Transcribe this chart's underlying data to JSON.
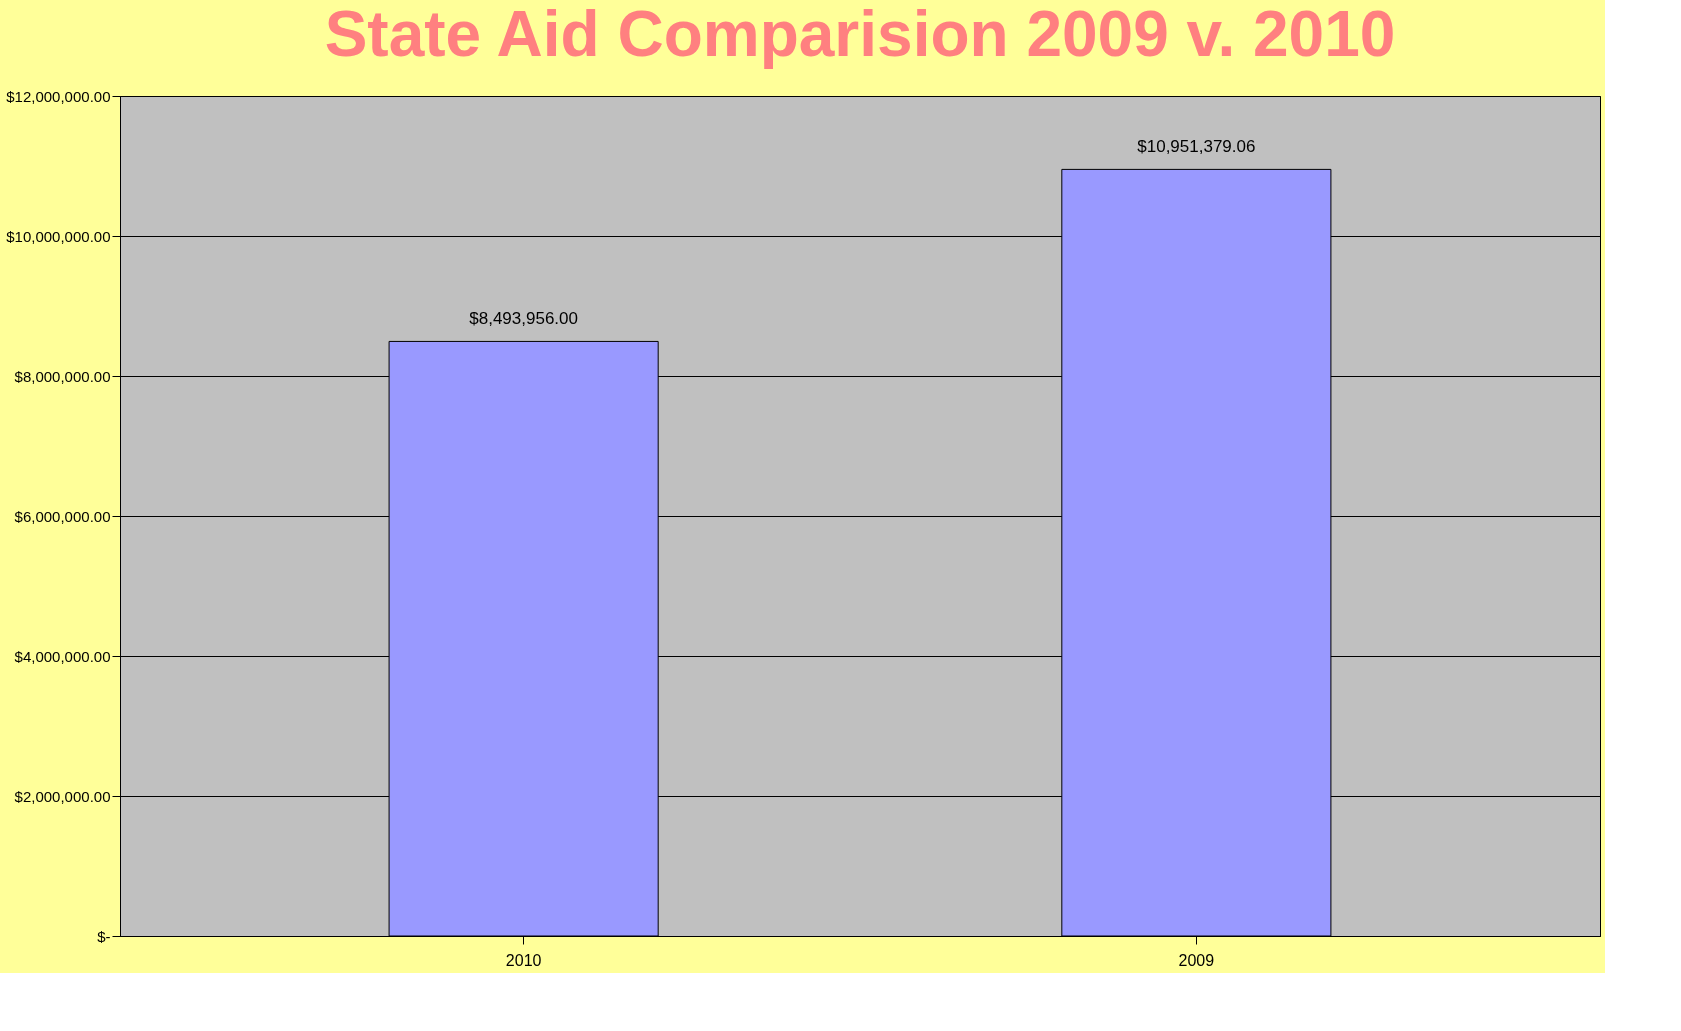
{
  "chart_data": {
    "type": "bar",
    "title": "State Aid Comparision 2009 v. 2010",
    "categories": [
      "2010",
      "2009"
    ],
    "series": [
      {
        "color": "#9999ff",
        "values": [
          8493956.0,
          10951379.06
        ]
      }
    ],
    "value_labels": [
      "$8,493,956.00",
      "$10,951,379.06"
    ],
    "ylim": [
      0,
      12000000
    ],
    "yticks": [
      {
        "value": 0,
        "label": "$-"
      },
      {
        "value": 2000000,
        "label": "$2,000,000.00"
      },
      {
        "value": 4000000,
        "label": "$4,000,000.00"
      },
      {
        "value": 6000000,
        "label": "$6,000,000.00"
      },
      {
        "value": 8000000,
        "label": "$8,000,000.00"
      },
      {
        "value": 10000000,
        "label": "$10,000,000.00"
      },
      {
        "value": 12000000,
        "label": "$12,000,000.00"
      }
    ],
    "grid": "y"
  }
}
